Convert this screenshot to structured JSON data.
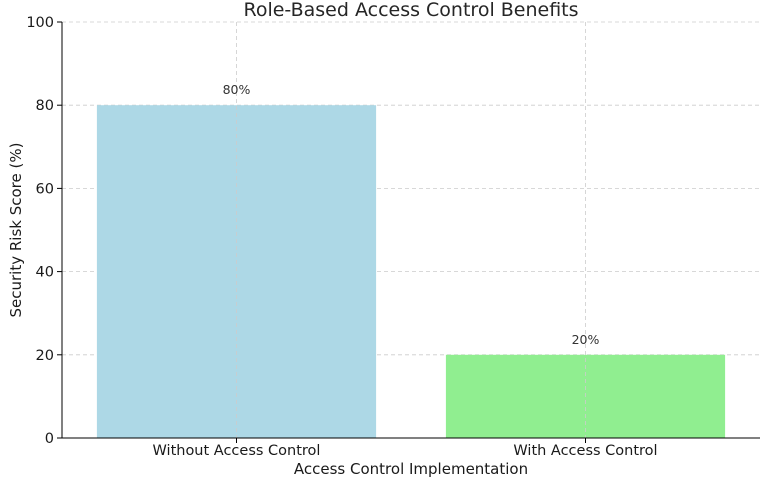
{
  "chart_data": {
    "type": "bar",
    "title": "Role-Based Access Control Benefits",
    "xlabel": "Access Control Implementation",
    "ylabel": "Security Risk Score (%)",
    "categories": [
      "Without Access Control",
      "With Access Control"
    ],
    "values": [
      80,
      20
    ],
    "data_labels": [
      "80%",
      "20%"
    ],
    "colors": [
      "#add8e6",
      "#90ee90"
    ],
    "ylim": [
      0,
      100
    ],
    "yticks": [
      0,
      20,
      40,
      60,
      80,
      100
    ],
    "grid": true,
    "legend": "none"
  }
}
